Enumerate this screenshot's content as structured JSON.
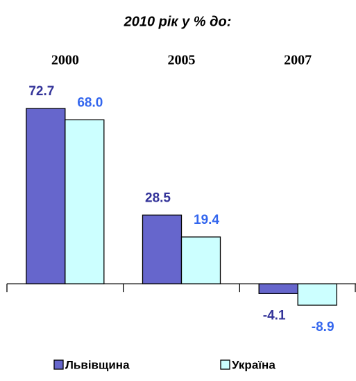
{
  "chart_data": {
    "type": "bar",
    "title": "2010 рік у % до:",
    "categories": [
      "2000",
      "2005",
      "2007"
    ],
    "series": [
      {
        "name": "Львівщина",
        "color": "#6666cc",
        "label_color": "#333399",
        "values": [
          72.7,
          28.5,
          -4.1
        ],
        "value_labels": [
          "72.7",
          "28.5",
          "-4.1"
        ]
      },
      {
        "name": "Україна",
        "color": "#ccffff",
        "label_color": "#3366ee",
        "values": [
          68.0,
          19.4,
          -8.9
        ],
        "value_labels": [
          "68.0",
          "19.4",
          "-8.9"
        ]
      }
    ]
  }
}
